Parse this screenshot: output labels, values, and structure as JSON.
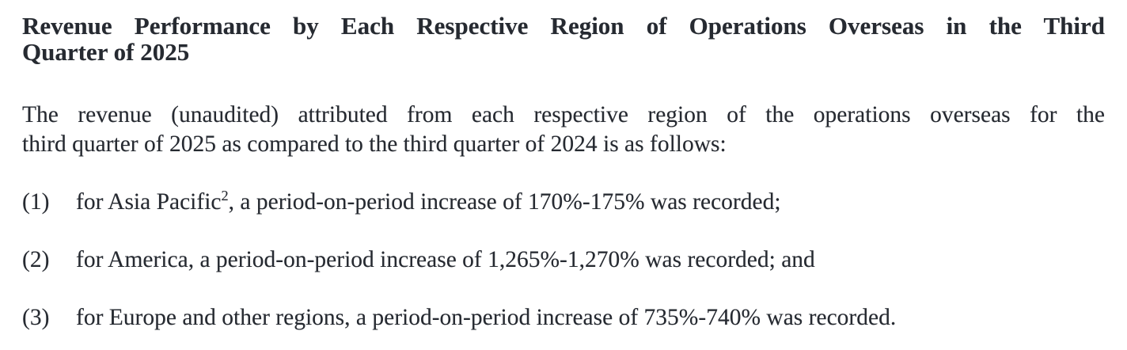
{
  "page": {
    "background": "#ffffff",
    "text_color": "#262a31"
  },
  "document": {
    "heading": {
      "line1": "Revenue Performance by Each Respective Region of Operations Overseas in the Third",
      "line2": "Quarter of 2025"
    },
    "intro": {
      "line1": "The revenue (unaudited) attributed from each respective region of the operations overseas for the",
      "line2": "third quarter of 2025 as compared to the third quarter of 2024 is as follows:"
    },
    "items": [
      {
        "marker": "(1)",
        "pre": "for Asia Pacific",
        "sup": "2",
        "post": ", a period-on-period increase of 170%-175% was recorded;"
      },
      {
        "marker": "(2)",
        "pre": "for America, a period-on-period increase of 1,265%-1,270% was recorded; and",
        "sup": "",
        "post": ""
      },
      {
        "marker": "(3)",
        "pre": "for Europe and other regions, a period-on-period increase of 735%-740% was recorded.",
        "sup": "",
        "post": ""
      }
    ]
  }
}
